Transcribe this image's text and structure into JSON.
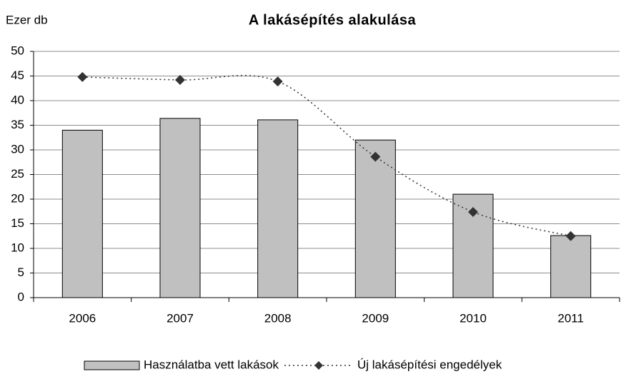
{
  "chart_data": {
    "type": "bar",
    "title": "A lakásépítés alakulása",
    "y_label": "Ezer db",
    "categories": [
      "2006",
      "2007",
      "2008",
      "2009",
      "2010",
      "2011"
    ],
    "series": [
      {
        "name": "Használatba vett lakások",
        "type": "bar",
        "color": "#c0c0c0",
        "values": [
          34.0,
          36.4,
          36.1,
          32.0,
          21.0,
          12.6
        ]
      },
      {
        "name": "Új lakásépítési engedélyek",
        "type": "line",
        "color": "#333333",
        "values": [
          44.8,
          44.2,
          43.9,
          28.6,
          17.4,
          12.5
        ]
      }
    ],
    "ylim": [
      0,
      50
    ],
    "yticks": [
      0,
      5,
      10,
      15,
      20,
      25,
      30,
      35,
      40,
      45,
      50
    ],
    "grid": true,
    "legend": "bottom"
  }
}
